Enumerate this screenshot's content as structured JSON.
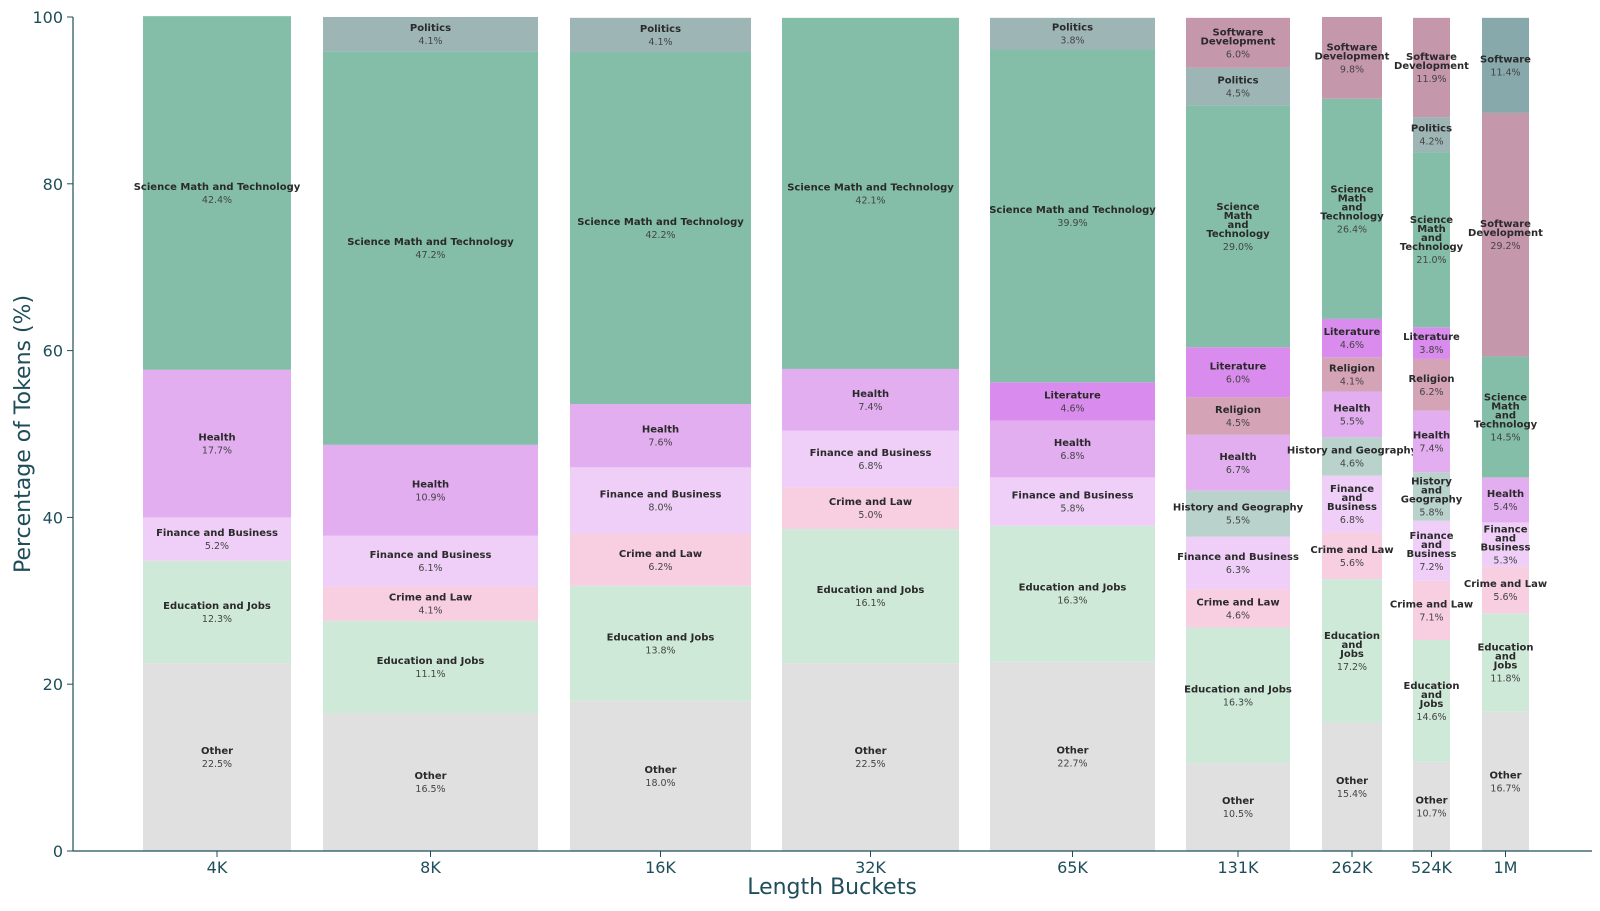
{
  "chart_data": {
    "type": "bar",
    "stacked": true,
    "normalized_percent": true,
    "xlabel": "Length Buckets",
    "ylabel": "Percentage of Tokens (%)",
    "ylim": [
      0,
      100
    ],
    "yticks": [
      "0",
      "20",
      "40",
      "60",
      "80",
      "100"
    ],
    "grid": false,
    "legend": "none (segments labeled in place)",
    "colors": {
      "Other": "#e0e0e0",
      "Education and Jobs": "#cfe9d9",
      "Crime and Law": "#f7cfe0",
      "Finance and Business": "#efcff7",
      "Health": "#e2aef0",
      "History and Geography": "#b9d3cc",
      "Religion": "#d4a3b5",
      "Literature": "#d98ced",
      "Science Math and Technology": "#84bea9",
      "Politics": "#9db6b5",
      "Software Development": "#c597ab",
      "Software": "#88a9ab"
    },
    "categories": [
      "4K",
      "8K",
      "16K",
      "32K",
      "65K",
      "131K",
      "262K",
      "524K",
      "1M"
    ],
    "stacks": [
      {
        "bucket": "4K",
        "segments": [
          {
            "name": "Other",
            "label": "Other",
            "value": 22.5,
            "value_label": "22.5%"
          },
          {
            "name": "Education and Jobs",
            "label": "Education and Jobs",
            "value": 12.3,
            "value_label": "12.3%"
          },
          {
            "name": "Finance and Business",
            "label": "Finance and Business",
            "value": 5.2,
            "value_label": "5.2%"
          },
          {
            "name": "Health",
            "label": "Health",
            "value": 17.7,
            "value_label": "17.7%"
          },
          {
            "name": "Science Math and Technology",
            "label": "Science Math and Technology",
            "value": 42.4,
            "value_label": "42.4%"
          }
        ]
      },
      {
        "bucket": "8K",
        "segments": [
          {
            "name": "Other",
            "label": "Other",
            "value": 16.5,
            "value_label": "16.5%"
          },
          {
            "name": "Education and Jobs",
            "label": "Education and Jobs",
            "value": 11.1,
            "value_label": "11.1%"
          },
          {
            "name": "Crime and Law",
            "label": "Crime and Law",
            "value": 4.1,
            "value_label": "4.1%"
          },
          {
            "name": "Finance and Business",
            "label": "Finance and Business",
            "value": 6.1,
            "value_label": "6.1%"
          },
          {
            "name": "Health",
            "label": "Health",
            "value": 10.9,
            "value_label": "10.9%"
          },
          {
            "name": "Science Math and Technology",
            "label": "Science Math and Technology",
            "value": 47.2,
            "value_label": "47.2%"
          },
          {
            "name": "Politics",
            "label": "Politics",
            "value": 4.1,
            "value_label": "4.1%"
          }
        ]
      },
      {
        "bucket": "16K",
        "segments": [
          {
            "name": "Other",
            "label": "Other",
            "value": 18.0,
            "value_label": "18.0%"
          },
          {
            "name": "Education and Jobs",
            "label": "Education and Jobs",
            "value": 13.8,
            "value_label": "13.8%"
          },
          {
            "name": "Crime and Law",
            "label": "Crime and Law",
            "value": 6.2,
            "value_label": "6.2%"
          },
          {
            "name": "Finance and Business",
            "label": "Finance and Business",
            "value": 8.0,
            "value_label": "8.0%"
          },
          {
            "name": "Health",
            "label": "Health",
            "value": 7.6,
            "value_label": "7.6%"
          },
          {
            "name": "Science Math and Technology",
            "label": "Science Math and Technology",
            "value": 42.2,
            "value_label": "42.2%"
          },
          {
            "name": "Politics",
            "label": "Politics",
            "value": 4.1,
            "value_label": "4.1%"
          }
        ]
      },
      {
        "bucket": "32K",
        "segments": [
          {
            "name": "Other",
            "label": "Other",
            "value": 22.5,
            "value_label": "22.5%"
          },
          {
            "name": "Education and Jobs",
            "label": "Education and Jobs",
            "value": 16.1,
            "value_label": "16.1%"
          },
          {
            "name": "Crime and Law",
            "label": "Crime and Law",
            "value": 5.0,
            "value_label": "5.0%"
          },
          {
            "name": "Finance and Business",
            "label": "Finance and Business",
            "value": 6.8,
            "value_label": "6.8%"
          },
          {
            "name": "Health",
            "label": "Health",
            "value": 7.4,
            "value_label": "7.4%"
          },
          {
            "name": "Science Math and Technology",
            "label": "Science Math and Technology",
            "value": 42.1,
            "value_label": "42.1%"
          }
        ]
      },
      {
        "bucket": "65K",
        "segments": [
          {
            "name": "Other",
            "label": "Other",
            "value": 22.7,
            "value_label": "22.7%"
          },
          {
            "name": "Education and Jobs",
            "label": "Education and Jobs",
            "value": 16.3,
            "value_label": "16.3%"
          },
          {
            "name": "Finance and Business",
            "label": "Finance and Business",
            "value": 5.8,
            "value_label": "5.8%"
          },
          {
            "name": "Health",
            "label": "Health",
            "value": 6.8,
            "value_label": "6.8%"
          },
          {
            "name": "Literature",
            "label": "Literature",
            "value": 4.6,
            "value_label": "4.6%"
          },
          {
            "name": "Science Math and Technology",
            "label": "Science Math and Technology",
            "value": 39.9,
            "value_label": "39.9%"
          },
          {
            "name": "Politics",
            "label": "Politics",
            "value": 3.8,
            "value_label": "3.8%"
          }
        ]
      },
      {
        "bucket": "131K",
        "segments": [
          {
            "name": "Other",
            "label": "Other",
            "value": 10.5,
            "value_label": "10.5%"
          },
          {
            "name": "Education and Jobs",
            "label": "Education and Jobs",
            "value": 16.3,
            "value_label": "16.3%"
          },
          {
            "name": "Crime and Law",
            "label": "Crime and Law",
            "value": 4.6,
            "value_label": "4.6%"
          },
          {
            "name": "Finance and Business",
            "label": "Finance and Business",
            "value": 6.3,
            "value_label": "6.3%"
          },
          {
            "name": "History and Geography",
            "label": "History and Geography",
            "value": 5.5,
            "value_label": "5.5%"
          },
          {
            "name": "Health",
            "label": "Health",
            "value": 6.7,
            "value_label": "6.7%"
          },
          {
            "name": "Religion",
            "label": "Religion",
            "value": 4.5,
            "value_label": "4.5%"
          },
          {
            "name": "Literature",
            "label": "Literature",
            "value": 6.0,
            "value_label": "6.0%"
          },
          {
            "name": "Science Math and Technology",
            "label": "Science\nMath\nand\nTechnology",
            "value": 29.0,
            "value_label": "29.0%"
          },
          {
            "name": "Politics",
            "label": "Politics",
            "value": 4.5,
            "value_label": "4.5%"
          },
          {
            "name": "Software Development",
            "label": "Software\nDevelopment",
            "value": 6.0,
            "value_label": "6.0%"
          }
        ]
      },
      {
        "bucket": "262K",
        "segments": [
          {
            "name": "Other",
            "label": "Other",
            "value": 15.4,
            "value_label": "15.4%"
          },
          {
            "name": "Education and Jobs",
            "label": "Education\nand\nJobs",
            "value": 17.2,
            "value_label": "17.2%"
          },
          {
            "name": "Crime and Law",
            "label": "Crime and Law",
            "value": 5.6,
            "value_label": "5.6%"
          },
          {
            "name": "Finance and Business",
            "label": "Finance\nand\nBusiness",
            "value": 6.8,
            "value_label": "6.8%"
          },
          {
            "name": "History and Geography",
            "label": "History and Geography",
            "value": 4.6,
            "value_label": "4.6%"
          },
          {
            "name": "Health",
            "label": "Health",
            "value": 5.5,
            "value_label": "5.5%"
          },
          {
            "name": "Religion",
            "label": "Religion",
            "value": 4.1,
            "value_label": "4.1%"
          },
          {
            "name": "Literature",
            "label": "Literature",
            "value": 4.6,
            "value_label": "4.6%"
          },
          {
            "name": "Science Math and Technology",
            "label": "Science\nMath\nand\nTechnology",
            "value": 26.4,
            "value_label": "26.4%"
          },
          {
            "name": "Software Development",
            "label": "Software\nDevelopment",
            "value": 9.8,
            "value_label": "9.8%"
          }
        ]
      },
      {
        "bucket": "524K",
        "segments": [
          {
            "name": "Other",
            "label": "Other",
            "value": 10.7,
            "value_label": "10.7%"
          },
          {
            "name": "Education and Jobs",
            "label": "Education\nand\nJobs",
            "value": 14.6,
            "value_label": "14.6%"
          },
          {
            "name": "Crime and Law",
            "label": "Crime and Law",
            "value": 7.1,
            "value_label": "7.1%"
          },
          {
            "name": "Finance and Business",
            "label": "Finance\nand\nBusiness",
            "value": 7.2,
            "value_label": "7.2%"
          },
          {
            "name": "History and Geography",
            "label": "History\nand\nGeography",
            "value": 5.8,
            "value_label": "5.8%"
          },
          {
            "name": "Health",
            "label": "Health",
            "value": 7.4,
            "value_label": "7.4%"
          },
          {
            "name": "Religion",
            "label": "Religion",
            "value": 6.2,
            "value_label": "6.2%"
          },
          {
            "name": "Literature",
            "label": "Literature",
            "value": 3.8,
            "value_label": "3.8%"
          },
          {
            "name": "Science Math and Technology",
            "label": "Science\nMath\nand\nTechnology",
            "value": 21.0,
            "value_label": "21.0%"
          },
          {
            "name": "Politics",
            "label": "Politics",
            "value": 4.2,
            "value_label": "4.2%"
          },
          {
            "name": "Software Development",
            "label": "Software\nDevelopment",
            "value": 11.9,
            "value_label": "11.9%"
          }
        ]
      },
      {
        "bucket": "1M",
        "segments": [
          {
            "name": "Other",
            "label": "Other",
            "value": 16.7,
            "value_label": "16.7%"
          },
          {
            "name": "Education and Jobs",
            "label": "Education\nand\nJobs",
            "value": 11.8,
            "value_label": "11.8%"
          },
          {
            "name": "Crime and Law",
            "label": "Crime and Law",
            "value": 5.6,
            "value_label": "5.6%"
          },
          {
            "name": "Finance and Business",
            "label": "Finance\nand\nBusiness",
            "value": 5.3,
            "value_label": "5.3%"
          },
          {
            "name": "Health",
            "label": "Health",
            "value": 5.4,
            "value_label": "5.4%"
          },
          {
            "name": "Science Math and Technology",
            "label": "Science\nMath\nand\nTechnology",
            "value": 14.5,
            "value_label": "14.5%"
          },
          {
            "name": "Software Development",
            "label": "Software\nDevelopment",
            "value": 29.2,
            "value_label": "29.2%"
          },
          {
            "name": "Software",
            "label": "Software",
            "value": 11.4,
            "value_label": "11.4%"
          }
        ]
      }
    ]
  }
}
